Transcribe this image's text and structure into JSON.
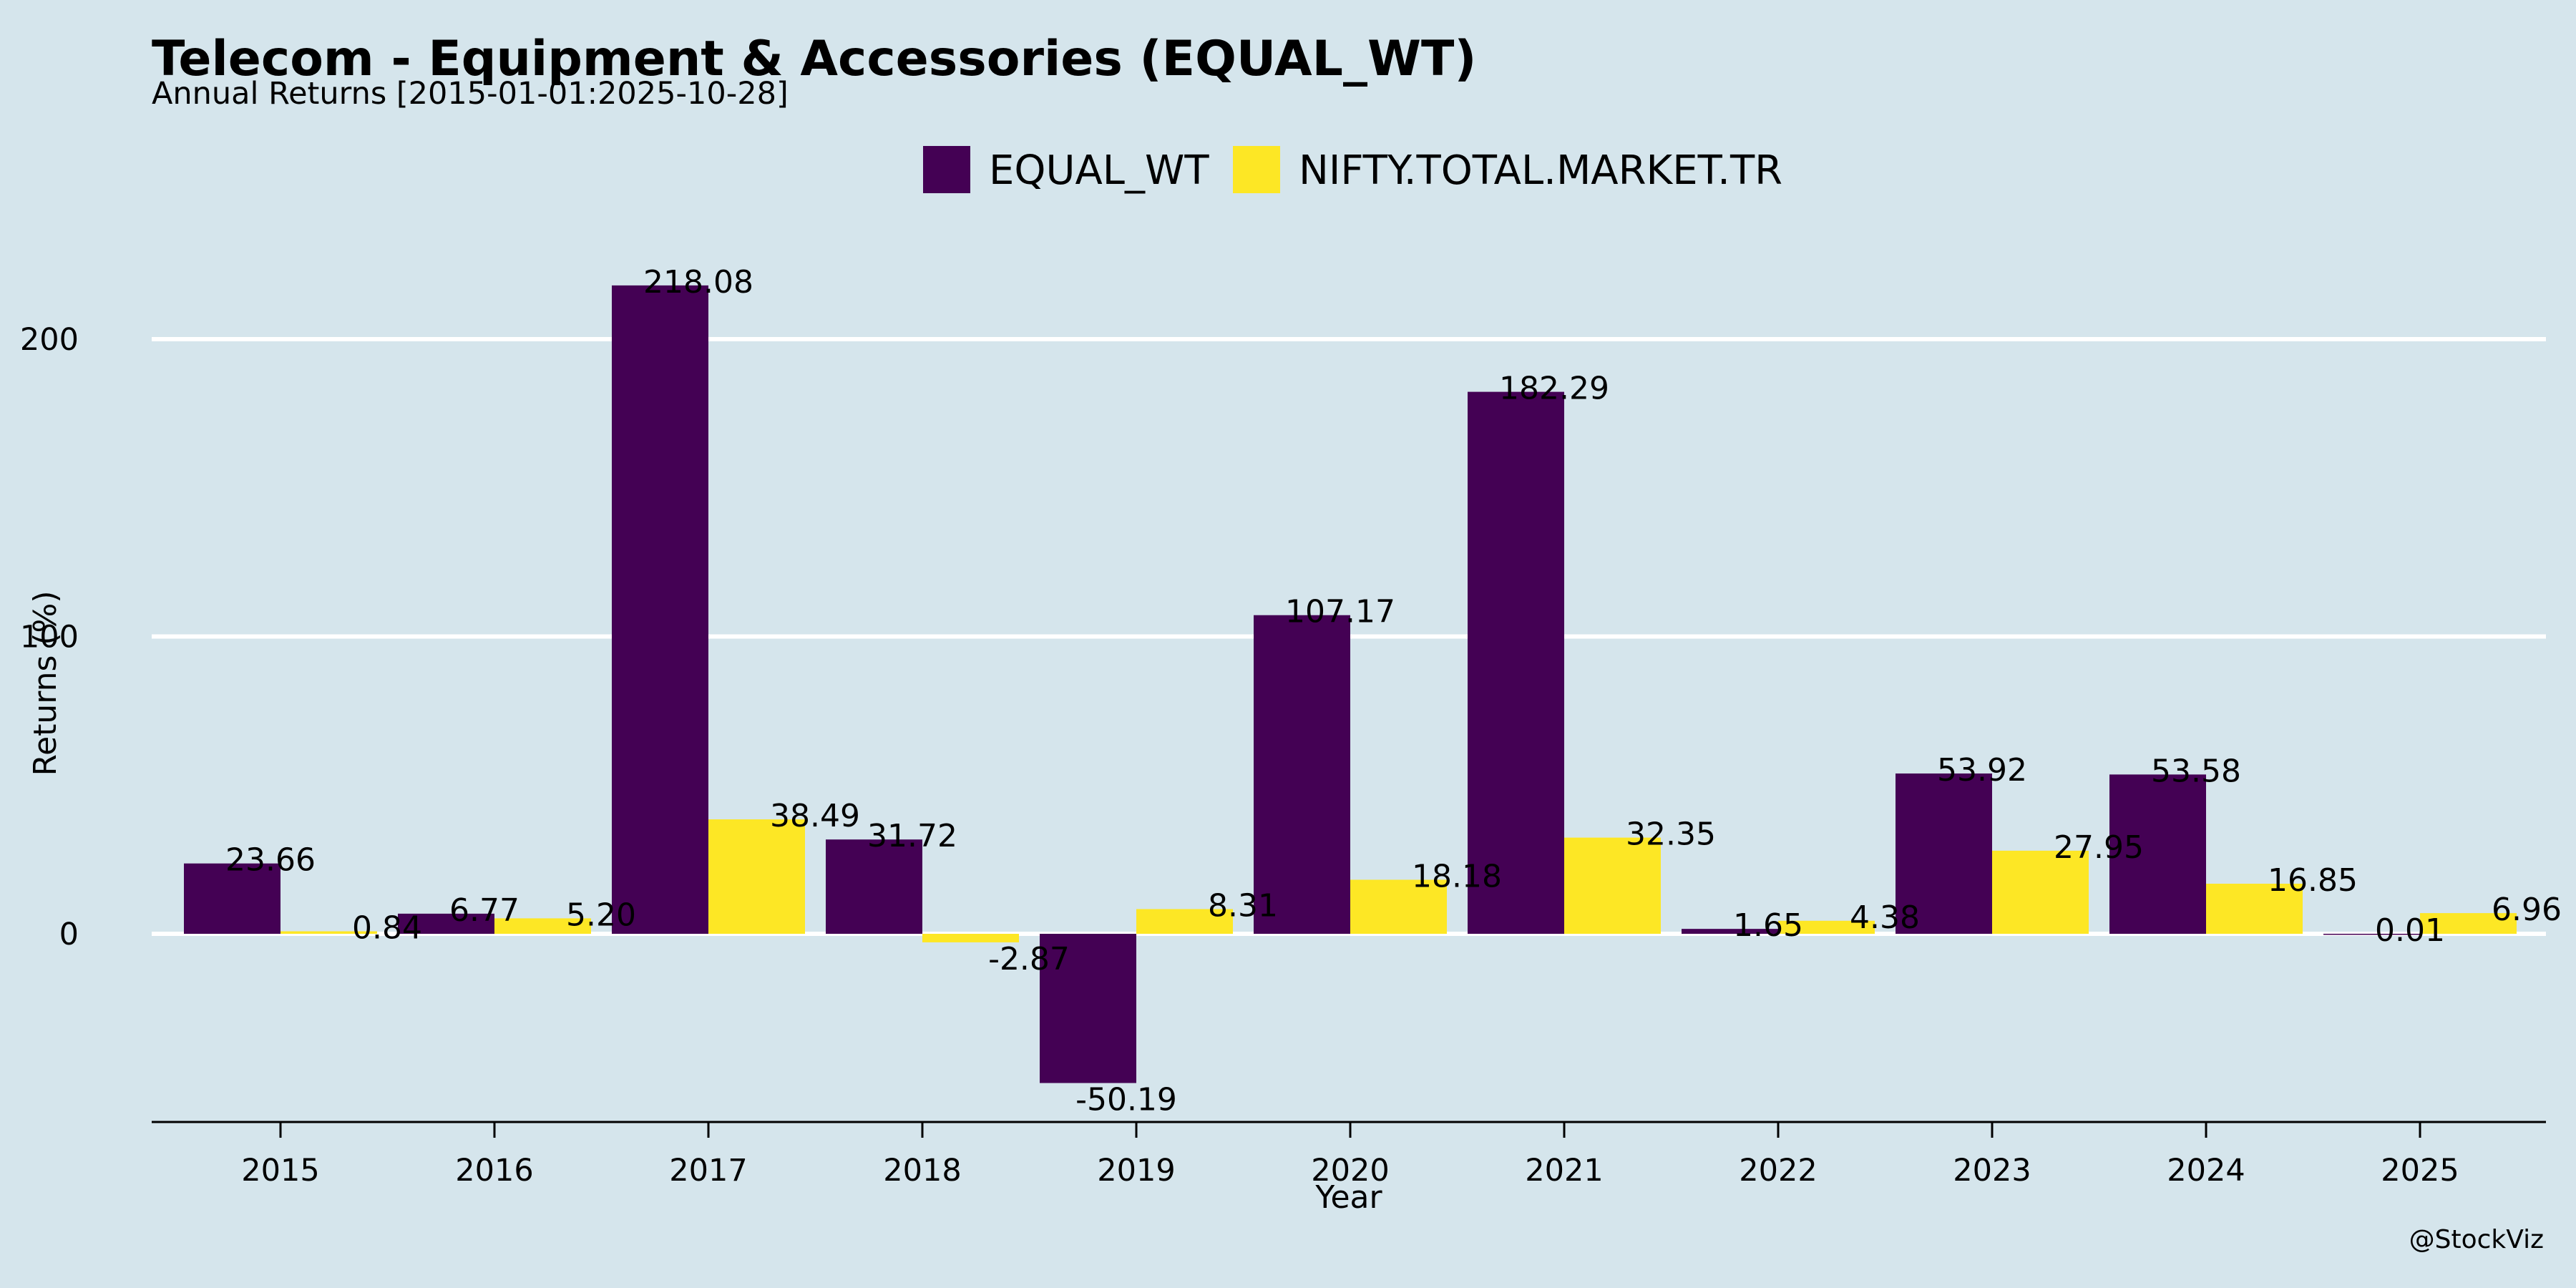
{
  "chart_data": {
    "type": "bar",
    "title": "Telecom - Equipment & Accessories (EQUAL_WT)",
    "subtitle": "Annual Returns [2015-01-01:2025-10-28]",
    "xlabel": "Year",
    "ylabel": "Returns (%)",
    "categories": [
      "2015",
      "2016",
      "2017",
      "2018",
      "2019",
      "2020",
      "2021",
      "2022",
      "2023",
      "2024",
      "2025"
    ],
    "series": [
      {
        "name": "EQUAL_WT",
        "color": "#440154",
        "values": [
          23.66,
          6.77,
          218.08,
          31.72,
          -50.19,
          107.17,
          182.29,
          1.65,
          53.92,
          53.58,
          0.01
        ],
        "labels": [
          "23.66",
          "6.77",
          "218.08",
          "31.72",
          "-50.19",
          "107.17",
          "182.29",
          "1.65",
          "53.92",
          "53.58",
          "0.01"
        ]
      },
      {
        "name": "NIFTY.TOTAL.MARKET.TR",
        "color": "#fde725",
        "values": [
          0.84,
          5.2,
          38.49,
          -2.87,
          8.31,
          18.18,
          32.35,
          4.38,
          27.95,
          16.85,
          6.96
        ],
        "labels": [
          "0.84",
          "5.20",
          "38.49",
          "-2.87",
          "8.31",
          "18.18",
          "32.35",
          "4.38",
          "27.95",
          "16.85",
          "6.96"
        ]
      }
    ],
    "yticks": [
      0,
      100,
      200
    ],
    "ylim": [
      -63,
      240
    ],
    "grid": true,
    "legend_position": "top-center",
    "colors": {
      "background": "#d5e5ec",
      "grid": "#ffffff",
      "axis": "#000000"
    }
  },
  "footer": {
    "credit": "@StockViz"
  }
}
